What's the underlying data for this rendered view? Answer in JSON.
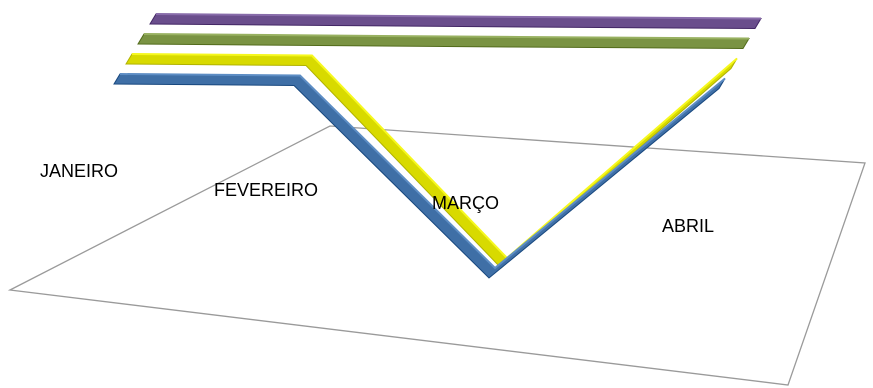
{
  "chart_data": {
    "type": "3d-line-ribbon",
    "categories": [
      "JANEIRO",
      "FEVEREIRO",
      "MARÇO",
      "ABRIL"
    ],
    "series": [
      {
        "values": [
          1,
          1,
          1,
          1
        ],
        "color": "#6a4e8c"
      },
      {
        "values": [
          1,
          1,
          1,
          1
        ],
        "color": "#7a9343"
      },
      {
        "values": [
          1,
          1,
          0,
          1
        ],
        "color": "#d8da00"
      },
      {
        "values": [
          1,
          1,
          0,
          1
        ],
        "color": "#3f6fa6"
      }
    ],
    "axes_visible": false,
    "legend": "none",
    "grid": false
  }
}
